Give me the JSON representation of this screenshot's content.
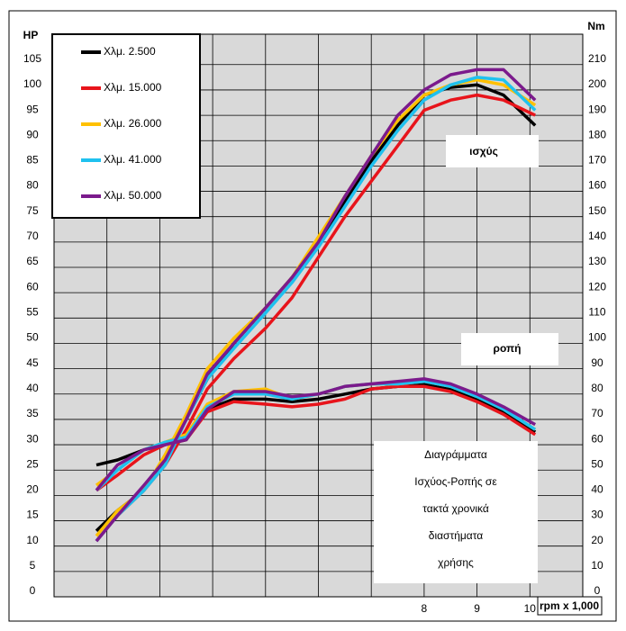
{
  "chart_data": {
    "type": "line",
    "y_label": "HP",
    "y2_label": "Nm",
    "x_label": "rpm x 1,000",
    "xlim": [
      1,
      11
    ],
    "xticks": [
      8,
      9,
      10
    ],
    "xgrid": [
      1,
      2,
      3,
      4,
      5,
      6,
      7,
      8,
      9,
      10,
      11
    ],
    "ylim": [
      0,
      111
    ],
    "yticks": [
      0,
      5,
      10,
      15,
      20,
      25,
      30,
      35,
      40,
      45,
      50,
      55,
      60,
      65,
      70,
      75,
      80,
      85,
      90,
      95,
      100,
      105
    ],
    "y2lim": [
      0,
      222
    ],
    "y2ticks": [
      0,
      10,
      20,
      30,
      40,
      50,
      60,
      70,
      80,
      90,
      100,
      110,
      120,
      130,
      140,
      150,
      160,
      170,
      180,
      190,
      200,
      210
    ],
    "grid": true,
    "legend": "top-left",
    "x": [
      1.8,
      2.2,
      2.7,
      3.1,
      3.5,
      3.9,
      4.4,
      5.0,
      5.5,
      6.0,
      6.5,
      7.0,
      7.5,
      8.0,
      8.5,
      9.0,
      9.5,
      10.1
    ],
    "series": [
      {
        "name": "Χλμ. 2.500",
        "color": "#000000",
        "values": [
          13,
          17,
          21,
          27,
          35,
          43,
          50,
          57,
          63,
          70,
          78,
          86,
          93,
          99,
          100.5,
          101,
          99,
          93
        ],
        "y2_values": [
          52,
          54,
          58,
          60,
          62,
          74,
          78,
          78,
          77,
          78,
          80,
          82,
          83,
          84,
          82,
          78,
          73,
          65
        ]
      },
      {
        "name": "Χλμ. 15.000",
        "color": "#e8141b",
        "values": [
          11,
          16,
          21,
          26,
          33,
          41,
          47,
          53,
          59,
          67,
          75,
          82,
          89,
          96,
          98,
          99,
          98,
          95
        ],
        "y2_values": [
          42,
          48,
          56,
          60,
          62,
          73,
          77,
          76,
          75,
          76,
          78,
          82,
          83,
          83,
          81,
          77,
          72,
          64
        ]
      },
      {
        "name": "Χλμ. 26.000",
        "color": "#ffc000",
        "values": [
          12,
          17,
          21,
          28,
          36,
          45,
          51,
          57,
          63,
          71,
          79,
          87,
          94,
          99,
          101,
          102,
          101,
          97
        ],
        "y2_values": [
          44,
          50,
          58,
          61,
          64,
          76,
          81,
          82,
          78,
          80,
          83,
          84,
          84,
          85,
          83,
          79,
          74,
          66
        ]
      },
      {
        "name": "Χλμ. 41.000",
        "color": "#1fc1ef",
        "values": [
          11,
          16,
          21,
          26,
          35,
          43,
          49,
          56,
          62,
          69,
          77,
          85,
          92,
          98,
          101,
          102.5,
          102,
          96
        ],
        "y2_values": [
          42,
          50,
          58,
          61,
          63,
          75,
          80,
          80,
          78,
          80,
          83,
          84,
          84,
          85,
          83,
          79,
          74,
          66
        ]
      },
      {
        "name": "Χλμ. 50.000",
        "color": "#7b1a8c",
        "values": [
          11,
          16,
          22,
          27,
          35,
          44,
          50,
          57,
          63,
          70,
          79,
          87,
          95,
          100,
          103,
          104,
          104,
          98
        ],
        "y2_values": [
          42,
          52,
          58,
          60,
          62,
          74,
          81,
          81,
          79,
          80,
          83,
          84,
          85,
          86,
          84,
          80,
          75,
          68
        ]
      }
    ],
    "annotations": {
      "power_label": "ισχύς",
      "torque_label": "ροπή",
      "caption": [
        "Διαγράμματα",
        "Ισχύος-Ροπής σε",
        "τακτά χρονικά",
        "διαστήματα",
        "χρήσης"
      ]
    }
  }
}
